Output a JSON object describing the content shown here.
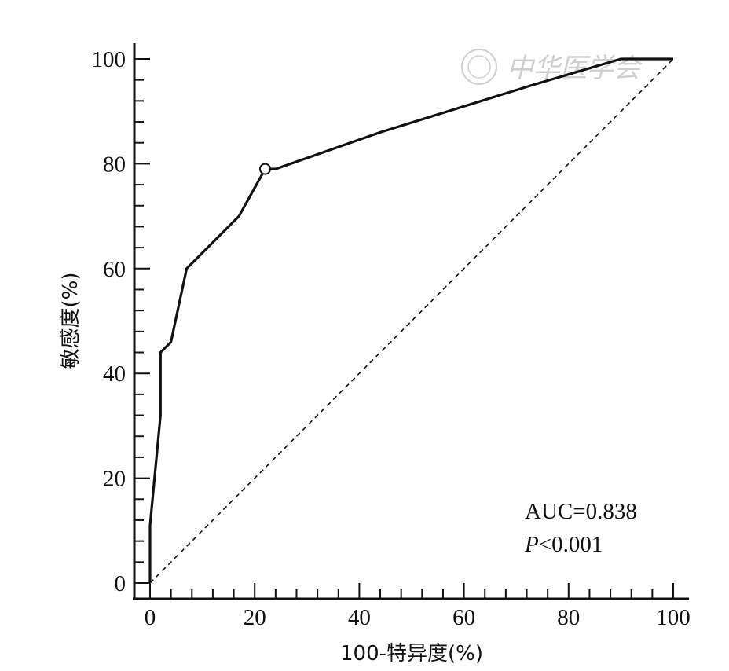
{
  "chart_data": {
    "type": "line",
    "xlabel": "100-特异度(%)",
    "ylabel": "敏感度(%)",
    "xlim": [
      0,
      100
    ],
    "ylim": [
      0,
      100
    ],
    "xticks": [
      0,
      20,
      40,
      60,
      80,
      100
    ],
    "yticks": [
      0,
      20,
      40,
      60,
      80,
      100
    ],
    "grid": false,
    "series": [
      {
        "role": "roc-curve",
        "style": "solid",
        "x": [
          0,
          0,
          0,
          2,
          2,
          4,
          7,
          17,
          22,
          24,
          44,
          73,
          90,
          100
        ],
        "y": [
          0,
          0,
          11,
          32,
          44,
          46,
          60,
          70,
          79,
          79,
          86,
          95,
          100,
          100
        ]
      },
      {
        "role": "reference-diagonal",
        "style": "dashed",
        "x": [
          0,
          100
        ],
        "y": [
          0,
          100
        ]
      }
    ],
    "highlight_point": {
      "x": 22,
      "y": 79
    },
    "annotations": {
      "auc": "AUC=0.838",
      "p_prefix": "P",
      "p_rest": "<0.001"
    },
    "watermark": "中华医学会"
  }
}
